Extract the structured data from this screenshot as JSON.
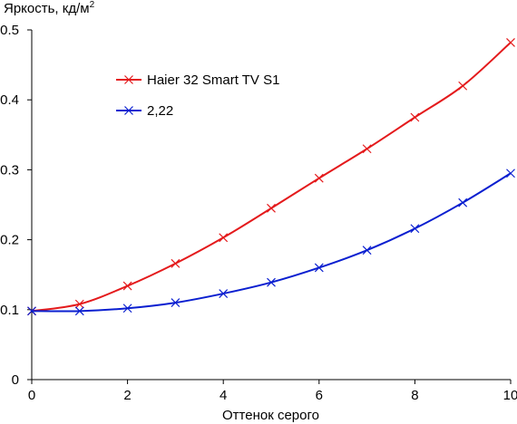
{
  "chart_data": {
    "type": "line",
    "ylabel": "Яркость, кд/м",
    "ylabel_sup": "2",
    "xlabel": "Оттенок серого",
    "xlim": [
      0,
      10
    ],
    "ylim": [
      0,
      0.5
    ],
    "x_ticks": [
      "0",
      "2",
      "4",
      "6",
      "8",
      "10"
    ],
    "y_ticks": [
      "0",
      "0.1",
      "0.2",
      "0.3",
      "0.4",
      "0.5"
    ],
    "x": [
      0,
      1,
      2,
      3,
      4,
      5,
      6,
      7,
      8,
      9,
      10
    ],
    "legend_position": "upper-left",
    "grid": false,
    "series": [
      {
        "name": "Haier 32 Smart TV S1",
        "color": "#e41a1c",
        "marker": "x",
        "values": [
          0.098,
          0.108,
          0.134,
          0.166,
          0.203,
          0.245,
          0.288,
          0.33,
          0.375,
          0.42,
          0.482
        ]
      },
      {
        "name": "2,22",
        "color": "#0a1fd0",
        "marker": "x",
        "values": [
          0.098,
          0.098,
          0.102,
          0.11,
          0.123,
          0.139,
          0.16,
          0.185,
          0.216,
          0.253,
          0.295
        ]
      }
    ]
  }
}
